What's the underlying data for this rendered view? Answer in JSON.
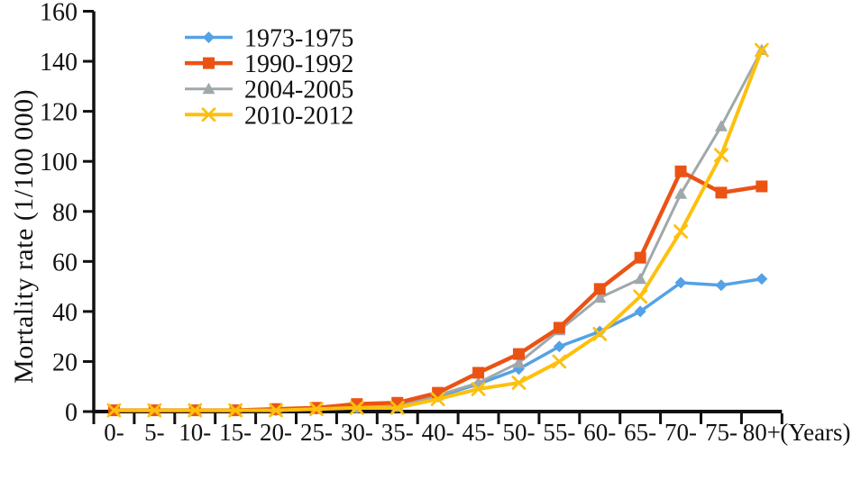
{
  "chart_data": {
    "type": "line",
    "ylabel": "Mortality rate (1/100 000)",
    "x_unit_label": "(Years)",
    "ylim": [
      0,
      160
    ],
    "ytick_interval": 20,
    "grid": false,
    "legend_position": "top-left-inside",
    "axis_color": "#111111",
    "text_color": "#111111",
    "categories": [
      "0-",
      "5-",
      "10-",
      "15-",
      "20-",
      "25-",
      "30-",
      "35-",
      "40-",
      "45-",
      "50-",
      "55-",
      "60-",
      "65-",
      "70-",
      "75-",
      "80+"
    ],
    "series": [
      {
        "name": "1973-1975",
        "color": "#54A1E6",
        "marker": "diamond",
        "values": [
          0.5,
          0.5,
          0.5,
          0.5,
          0.5,
          1,
          1.5,
          2,
          6,
          11,
          17,
          26,
          32,
          40,
          51.5,
          50.5,
          53
        ]
      },
      {
        "name": "1990-1992",
        "color": "#EB5315",
        "marker": "square",
        "values": [
          0.5,
          0.5,
          0.5,
          0.5,
          1,
          1.5,
          3,
          3.5,
          7.5,
          15.5,
          23,
          33.5,
          49,
          61.5,
          96,
          87.5,
          90
        ]
      },
      {
        "name": "2004-2005",
        "color": "#A0A8AB",
        "marker": "triangle",
        "values": [
          0.5,
          0.5,
          0.5,
          0.5,
          0.5,
          1,
          1.5,
          2,
          6.5,
          11.5,
          19.5,
          32.5,
          45.5,
          53,
          87,
          114,
          144.5
        ]
      },
      {
        "name": "2010-2012",
        "color": "#FDC00D",
        "marker": "x",
        "values": [
          0.5,
          0.5,
          0.5,
          0.5,
          0.5,
          1,
          1.5,
          1.5,
          5,
          9,
          11.5,
          20,
          31,
          46,
          72,
          102.5,
          144.5
        ]
      }
    ]
  }
}
